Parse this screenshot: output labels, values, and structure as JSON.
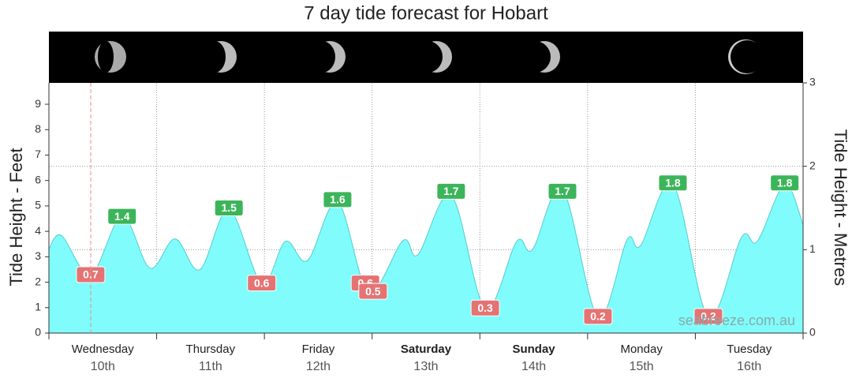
{
  "chart_data": {
    "type": "area",
    "title": "7 day tide forecast for Hobart",
    "ylabel": "Tide Height - Feet",
    "y2label": "Tide Height - Metres",
    "watermark": "seabreeze.com.au",
    "days": [
      "Wednesday",
      "Thursday",
      "Friday",
      "Saturday",
      "Sunday",
      "Monday",
      "Tuesday"
    ],
    "dates": [
      "10th",
      "11th",
      "12th",
      "13th",
      "14th",
      "15th",
      "16th"
    ],
    "bold_days": [
      false,
      false,
      false,
      true,
      true,
      false,
      false
    ],
    "xlim": [
      0,
      168
    ],
    "xticks": [
      0,
      24,
      48,
      72,
      96,
      120,
      144,
      168
    ],
    "ylim": [
      0,
      9.84
    ],
    "yticks": [
      0,
      1,
      2,
      3,
      4,
      5,
      6,
      7,
      8,
      9
    ],
    "y2lim": [
      0,
      3
    ],
    "y2ticks": [
      0,
      1,
      2,
      3
    ],
    "grid": true,
    "series": [
      {
        "color": "#80fcfc",
        "axis": "y2",
        "x": [
          0,
          2.8,
          9.3,
          16.3,
          22.5,
          28.1,
          33.6,
          40.1,
          47.4,
          52.7,
          57.6,
          64.3,
          71.2,
          78.9,
          82.2,
          89.6,
          97.2,
          104.2,
          107.7,
          114.4,
          122.3,
          128.8,
          131.8,
          139,
          146.9,
          154.3,
          157.8,
          163.9,
          168
        ],
        "values": [
          1.01,
          1.17,
          0.7,
          1.4,
          0.78,
          1.13,
          0.76,
          1.48,
          0.6,
          1.1,
          0.87,
          1.57,
          0.5,
          1.11,
          0.94,
          1.65,
          0.3,
          1.1,
          1.0,
          1.72,
          0.2,
          1.12,
          1.05,
          1.78,
          0.2,
          1.15,
          1.1,
          1.78,
          1.3
        ]
      }
    ],
    "high_tides": {
      "color": "#3cb55a",
      "x": [
        16.3,
        40.1,
        64.3,
        89.6,
        114.4,
        139,
        163.9
      ],
      "values": [
        1.4,
        1.5,
        1.6,
        1.7,
        1.7,
        1.8,
        1.8
      ]
    },
    "low_tides": {
      "color": "#e57373",
      "x": [
        9.3,
        47.4,
        70.5,
        72.2,
        97.2,
        122.3,
        146.9
      ],
      "values": [
        0.7,
        0.6,
        0.6,
        0.5,
        0.3,
        0.2,
        0.2
      ]
    }
  }
}
